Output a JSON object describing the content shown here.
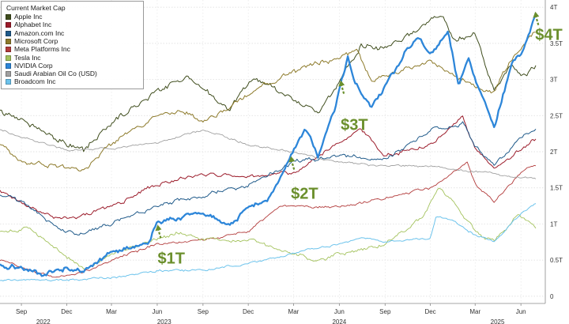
{
  "chart_data": {
    "type": "line",
    "title": "",
    "xlabel": "",
    "ylabel": "",
    "ylim": [
      -0.1,
      4.1
    ],
    "grid": true,
    "legend_position": "top-left",
    "legend_title": "Current Market Cap",
    "yticks": [
      {
        "value": 0,
        "label": "0"
      },
      {
        "value": 0.5,
        "label": "0.5T"
      },
      {
        "value": 1,
        "label": "1T"
      },
      {
        "value": 1.5,
        "label": "1.5T"
      },
      {
        "value": 2,
        "label": "2T"
      },
      {
        "value": 2.5,
        "label": "2.5T"
      },
      {
        "value": 3,
        "label": "3T"
      },
      {
        "value": 3.5,
        "label": "3.5T"
      },
      {
        "value": 4,
        "label": "4T"
      }
    ],
    "xticks": [
      {
        "date": "2022-09-01",
        "label": "Sep"
      },
      {
        "date": "2022-12-01",
        "label": "Dec"
      },
      {
        "date": "2023-03-01",
        "label": "Mar"
      },
      {
        "date": "2023-06-01",
        "label": "Jun"
      },
      {
        "date": "2023-09-01",
        "label": "Sep"
      },
      {
        "date": "2023-12-01",
        "label": "Dec"
      },
      {
        "date": "2024-03-01",
        "label": "Mar"
      },
      {
        "date": "2024-06-01",
        "label": "Jun"
      },
      {
        "date": "2024-09-01",
        "label": "Sep"
      },
      {
        "date": "2024-12-01",
        "label": "Dec"
      },
      {
        "date": "2025-03-01",
        "label": "Mar"
      },
      {
        "date": "2025-06-01",
        "label": "Jun"
      }
    ],
    "year_labels": [
      {
        "date": "2022-10-15",
        "label": "2022"
      },
      {
        "date": "2023-06-15",
        "label": "2023"
      },
      {
        "date": "2024-06-01",
        "label": "2024"
      },
      {
        "date": "2025-04-15",
        "label": "2025"
      }
    ],
    "x_range": [
      "2022-07-20",
      "2025-07-20"
    ],
    "series": [
      {
        "name": "Apple Inc",
        "color": "#3f4d1d",
        "width": 1.0,
        "noise": 0.055,
        "points": [
          [
            "2022-07-20",
            2.55
          ],
          [
            "2022-09-01",
            2.45
          ],
          [
            "2022-12-01",
            2.12
          ],
          [
            "2023-01-05",
            2.0
          ],
          [
            "2023-03-01",
            2.4
          ],
          [
            "2023-06-01",
            2.85
          ],
          [
            "2023-07-31",
            3.05
          ],
          [
            "2023-09-01",
            2.85
          ],
          [
            "2023-10-26",
            2.6
          ],
          [
            "2023-12-14",
            3.05
          ],
          [
            "2024-01-02",
            2.95
          ],
          [
            "2024-03-01",
            2.7
          ],
          [
            "2024-04-19",
            2.55
          ],
          [
            "2024-06-01",
            2.95
          ],
          [
            "2024-07-15",
            3.5
          ],
          [
            "2024-09-01",
            3.4
          ],
          [
            "2024-12-26",
            3.9
          ],
          [
            "2025-01-15",
            3.55
          ],
          [
            "2025-03-01",
            3.6
          ],
          [
            "2025-04-08",
            2.85
          ],
          [
            "2025-05-15",
            3.2
          ],
          [
            "2025-06-01",
            3.05
          ],
          [
            "2025-07-03",
            3.15
          ]
        ]
      },
      {
        "name": "Alphabet Inc",
        "color": "#9b1b2a",
        "width": 1.0,
        "noise": 0.035,
        "points": [
          [
            "2022-07-20",
            1.45
          ],
          [
            "2022-11-03",
            1.1
          ],
          [
            "2023-01-05",
            1.12
          ],
          [
            "2023-03-01",
            1.25
          ],
          [
            "2023-06-01",
            1.55
          ],
          [
            "2023-09-01",
            1.7
          ],
          [
            "2023-12-01",
            1.65
          ],
          [
            "2024-03-01",
            1.7
          ],
          [
            "2024-06-01",
            2.15
          ],
          [
            "2024-07-15",
            2.3
          ],
          [
            "2024-09-01",
            1.95
          ],
          [
            "2024-12-01",
            2.1
          ],
          [
            "2025-02-04",
            2.5
          ],
          [
            "2025-03-01",
            2.05
          ],
          [
            "2025-04-08",
            1.75
          ],
          [
            "2025-06-01",
            2.05
          ],
          [
            "2025-07-03",
            2.18
          ]
        ]
      },
      {
        "name": "Amazon.com Inc",
        "color": "#1f5a8a",
        "width": 1.0,
        "noise": 0.035,
        "points": [
          [
            "2022-07-20",
            1.4
          ],
          [
            "2022-09-01",
            1.3
          ],
          [
            "2022-12-01",
            0.88
          ],
          [
            "2023-01-05",
            0.88
          ],
          [
            "2023-03-01",
            1.0
          ],
          [
            "2023-06-01",
            1.25
          ],
          [
            "2023-09-01",
            1.4
          ],
          [
            "2023-12-01",
            1.55
          ],
          [
            "2024-03-01",
            1.85
          ],
          [
            "2024-06-01",
            1.95
          ],
          [
            "2024-09-01",
            1.9
          ],
          [
            "2024-12-01",
            2.3
          ],
          [
            "2025-02-04",
            2.4
          ],
          [
            "2025-03-01",
            2.1
          ],
          [
            "2025-04-08",
            1.8
          ],
          [
            "2025-06-01",
            2.2
          ],
          [
            "2025-07-03",
            2.3
          ]
        ]
      },
      {
        "name": "Microsoft Corp",
        "color": "#8d7a2a",
        "width": 1.0,
        "noise": 0.045,
        "points": [
          [
            "2022-07-20",
            2.1
          ],
          [
            "2022-09-01",
            1.85
          ],
          [
            "2022-12-01",
            1.8
          ],
          [
            "2023-01-05",
            1.75
          ],
          [
            "2023-03-01",
            2.1
          ],
          [
            "2023-06-01",
            2.5
          ],
          [
            "2023-07-20",
            2.6
          ],
          [
            "2023-09-01",
            2.4
          ],
          [
            "2023-12-01",
            2.8
          ],
          [
            "2024-03-01",
            3.1
          ],
          [
            "2024-06-01",
            3.3
          ],
          [
            "2024-07-05",
            3.4
          ],
          [
            "2024-08-05",
            3.0
          ],
          [
            "2024-12-01",
            3.25
          ],
          [
            "2025-03-01",
            2.9
          ],
          [
            "2025-04-08",
            2.85
          ],
          [
            "2025-05-15",
            3.3
          ],
          [
            "2025-07-03",
            3.7
          ]
        ]
      },
      {
        "name": "Meta Platforms Inc",
        "color": "#b23a3a",
        "width": 0.9,
        "noise": 0.025,
        "points": [
          [
            "2022-07-20",
            0.5
          ],
          [
            "2022-11-03",
            0.25
          ],
          [
            "2023-01-05",
            0.33
          ],
          [
            "2023-03-01",
            0.5
          ],
          [
            "2023-06-01",
            0.72
          ],
          [
            "2023-09-01",
            0.78
          ],
          [
            "2023-12-01",
            0.9
          ],
          [
            "2024-02-02",
            1.22
          ],
          [
            "2024-03-01",
            1.25
          ],
          [
            "2024-06-01",
            1.25
          ],
          [
            "2024-09-01",
            1.35
          ],
          [
            "2024-12-01",
            1.5
          ],
          [
            "2025-02-14",
            1.85
          ],
          [
            "2025-03-01",
            1.55
          ],
          [
            "2025-04-08",
            1.3
          ],
          [
            "2025-06-01",
            1.7
          ],
          [
            "2025-07-03",
            1.82
          ]
        ]
      },
      {
        "name": "Tesla Inc",
        "color": "#a3c25c",
        "width": 0.9,
        "noise": 0.035,
        "points": [
          [
            "2022-07-20",
            0.9
          ],
          [
            "2022-09-15",
            0.95
          ],
          [
            "2022-12-01",
            0.55
          ],
          [
            "2023-01-05",
            0.38
          ],
          [
            "2023-03-01",
            0.6
          ],
          [
            "2023-06-01",
            0.8
          ],
          [
            "2023-07-20",
            0.88
          ],
          [
            "2023-09-01",
            0.78
          ],
          [
            "2023-12-01",
            0.78
          ],
          [
            "2024-03-01",
            0.58
          ],
          [
            "2024-04-20",
            0.5
          ],
          [
            "2024-06-01",
            0.58
          ],
          [
            "2024-09-01",
            0.72
          ],
          [
            "2024-11-15",
            1.1
          ],
          [
            "2024-12-17",
            1.5
          ],
          [
            "2025-01-15",
            1.3
          ],
          [
            "2025-03-01",
            0.9
          ],
          [
            "2025-04-08",
            0.75
          ],
          [
            "2025-05-28",
            1.15
          ],
          [
            "2025-07-03",
            0.95
          ]
        ]
      },
      {
        "name": "NVIDIA Corp",
        "color": "#2d86d9",
        "width": 2.3,
        "noise": 0.045,
        "points": [
          [
            "2022-07-20",
            0.45
          ],
          [
            "2022-09-01",
            0.38
          ],
          [
            "2022-10-14",
            0.3
          ],
          [
            "2022-12-01",
            0.4
          ],
          [
            "2023-01-05",
            0.35
          ],
          [
            "2023-03-01",
            0.6
          ],
          [
            "2023-05-15",
            0.75
          ],
          [
            "2023-05-30",
            1.0
          ],
          [
            "2023-06-15",
            1.05
          ],
          [
            "2023-09-01",
            1.15
          ],
          [
            "2023-10-26",
            1.0
          ],
          [
            "2023-12-01",
            1.2
          ],
          [
            "2024-01-15",
            1.4
          ],
          [
            "2024-02-23",
            1.95
          ],
          [
            "2024-03-01",
            2.05
          ],
          [
            "2024-03-25",
            2.3
          ],
          [
            "2024-04-19",
            1.95
          ],
          [
            "2024-05-23",
            2.6
          ],
          [
            "2024-06-05",
            3.0
          ],
          [
            "2024-06-18",
            3.32
          ],
          [
            "2024-07-01",
            3.0
          ],
          [
            "2024-08-05",
            2.6
          ],
          [
            "2024-09-01",
            2.9
          ],
          [
            "2024-10-15",
            3.4
          ],
          [
            "2024-11-08",
            3.6
          ],
          [
            "2024-12-01",
            3.35
          ],
          [
            "2025-01-06",
            3.65
          ],
          [
            "2025-01-27",
            2.9
          ],
          [
            "2025-02-15",
            3.35
          ],
          [
            "2025-03-01",
            3.0
          ],
          [
            "2025-04-08",
            2.35
          ],
          [
            "2025-05-15",
            3.25
          ],
          [
            "2025-06-01",
            3.35
          ],
          [
            "2025-07-03",
            3.95
          ]
        ]
      },
      {
        "name": "Saudi Arabian Oil Co (USD)",
        "color": "#a0a0a0",
        "width": 0.9,
        "noise": 0.02,
        "points": [
          [
            "2022-07-20",
            2.3
          ],
          [
            "2022-09-01",
            2.22
          ],
          [
            "2022-12-01",
            2.02
          ],
          [
            "2023-03-01",
            2.05
          ],
          [
            "2023-06-01",
            2.12
          ],
          [
            "2023-09-01",
            2.3
          ],
          [
            "2023-12-01",
            2.1
          ],
          [
            "2024-03-01",
            2.0
          ],
          [
            "2024-06-01",
            1.85
          ],
          [
            "2024-09-01",
            1.8
          ],
          [
            "2024-12-01",
            1.8
          ],
          [
            "2025-03-01",
            1.72
          ],
          [
            "2025-07-03",
            1.62
          ]
        ]
      },
      {
        "name": "Broadcom Inc",
        "color": "#6cc3ec",
        "width": 1.0,
        "noise": 0.02,
        "points": [
          [
            "2022-07-20",
            0.22
          ],
          [
            "2022-12-01",
            0.22
          ],
          [
            "2023-03-01",
            0.26
          ],
          [
            "2023-06-01",
            0.35
          ],
          [
            "2023-09-01",
            0.36
          ],
          [
            "2023-12-01",
            0.45
          ],
          [
            "2024-03-01",
            0.6
          ],
          [
            "2024-06-01",
            0.72
          ],
          [
            "2024-07-15",
            0.82
          ],
          [
            "2024-09-01",
            0.75
          ],
          [
            "2024-12-01",
            0.8
          ],
          [
            "2024-12-13",
            1.1
          ],
          [
            "2025-01-15",
            1.05
          ],
          [
            "2025-03-01",
            0.85
          ],
          [
            "2025-04-08",
            0.75
          ],
          [
            "2025-06-01",
            1.15
          ],
          [
            "2025-07-03",
            1.28
          ]
        ]
      }
    ],
    "annotations": [
      {
        "label": "$1T",
        "date": "2023-06-05",
        "value": 1.0,
        "text_value": 0.45
      },
      {
        "label": "$2T",
        "date": "2024-02-28",
        "value": 1.95,
        "text_value": 1.35
      },
      {
        "label": "$3T",
        "date": "2024-06-07",
        "value": 3.0,
        "text_value": 2.3
      },
      {
        "label": "$4T",
        "date": "2025-07-03",
        "value": 3.95,
        "text_value": 3.55
      }
    ],
    "annotation_color": "#6b8f2c"
  }
}
